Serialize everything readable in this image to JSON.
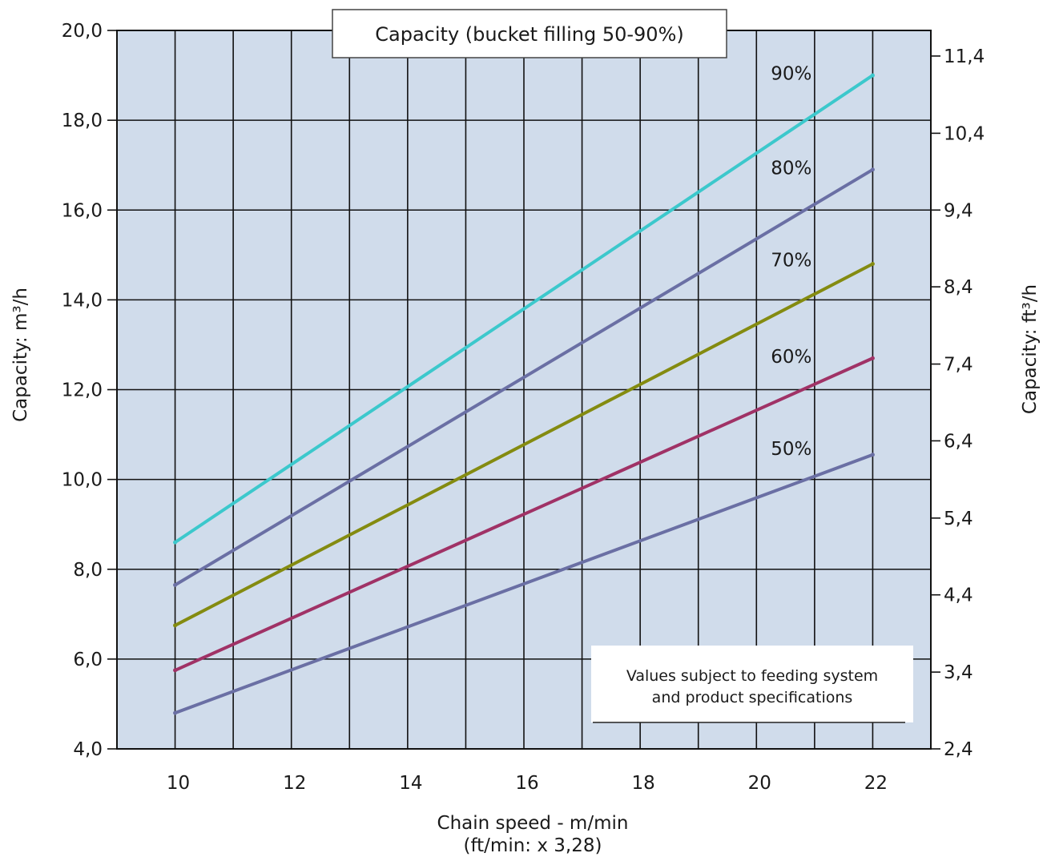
{
  "chart_data": {
    "type": "line",
    "title": "Capacity (bucket filling 50-90%)",
    "xlabel": "Chain speed - m/min",
    "xlabel_sub": "(ft/min: x 3,28)",
    "ylabel": "Capacity: m³/h",
    "y2label": "Capacity: ft³/h",
    "xlim": [
      9,
      23
    ],
    "ylim": [
      4,
      20
    ],
    "x_ticks": [
      10,
      12,
      14,
      16,
      18,
      20,
      22
    ],
    "x_tick_labels": [
      "10",
      "12",
      "14",
      "16",
      "18",
      "20",
      "22"
    ],
    "y_ticks": [
      4,
      6,
      8,
      10,
      12,
      14,
      16,
      18,
      20
    ],
    "y_tick_labels": [
      "4,0",
      "6,0",
      "8,0",
      "10,0",
      "12,0",
      "14,0",
      "16,0",
      "18,0",
      "20,0"
    ],
    "y2_ticks": [
      4,
      5.71,
      7.43,
      9.14,
      10.86,
      12.57,
      14.29,
      16,
      17.71,
      19.43
    ],
    "y2_tick_labels": [
      "2,4",
      "3,4",
      "4,4",
      "5,4",
      "6,4",
      "7,4",
      "8,4",
      "9,4",
      "10,4",
      "11,4"
    ],
    "grid": true,
    "plot_background": "#d0dceb",
    "note": [
      "Values subject to feeding system",
      "and product specifications"
    ],
    "series": [
      {
        "name": "90%",
        "color": "#3cc8cc",
        "x": [
          10,
          22
        ],
        "values": [
          8.6,
          19.0
        ],
        "label_at": [
          20.6,
          18.9
        ]
      },
      {
        "name": "80%",
        "color": "#6a6fa4",
        "x": [
          10,
          22
        ],
        "values": [
          7.65,
          16.9
        ],
        "label_at": [
          20.6,
          16.8
        ]
      },
      {
        "name": "70%",
        "color": "#848b10",
        "x": [
          10,
          22
        ],
        "values": [
          6.75,
          14.8
        ],
        "label_at": [
          20.6,
          14.75
        ]
      },
      {
        "name": "60%",
        "color": "#a03266",
        "x": [
          10,
          22
        ],
        "values": [
          5.75,
          12.7
        ],
        "label_at": [
          20.6,
          12.6
        ]
      },
      {
        "name": "50%",
        "color": "#6a6fa4",
        "x": [
          10,
          22
        ],
        "values": [
          4.8,
          10.55
        ],
        "label_at": [
          20.6,
          10.55
        ]
      }
    ]
  }
}
